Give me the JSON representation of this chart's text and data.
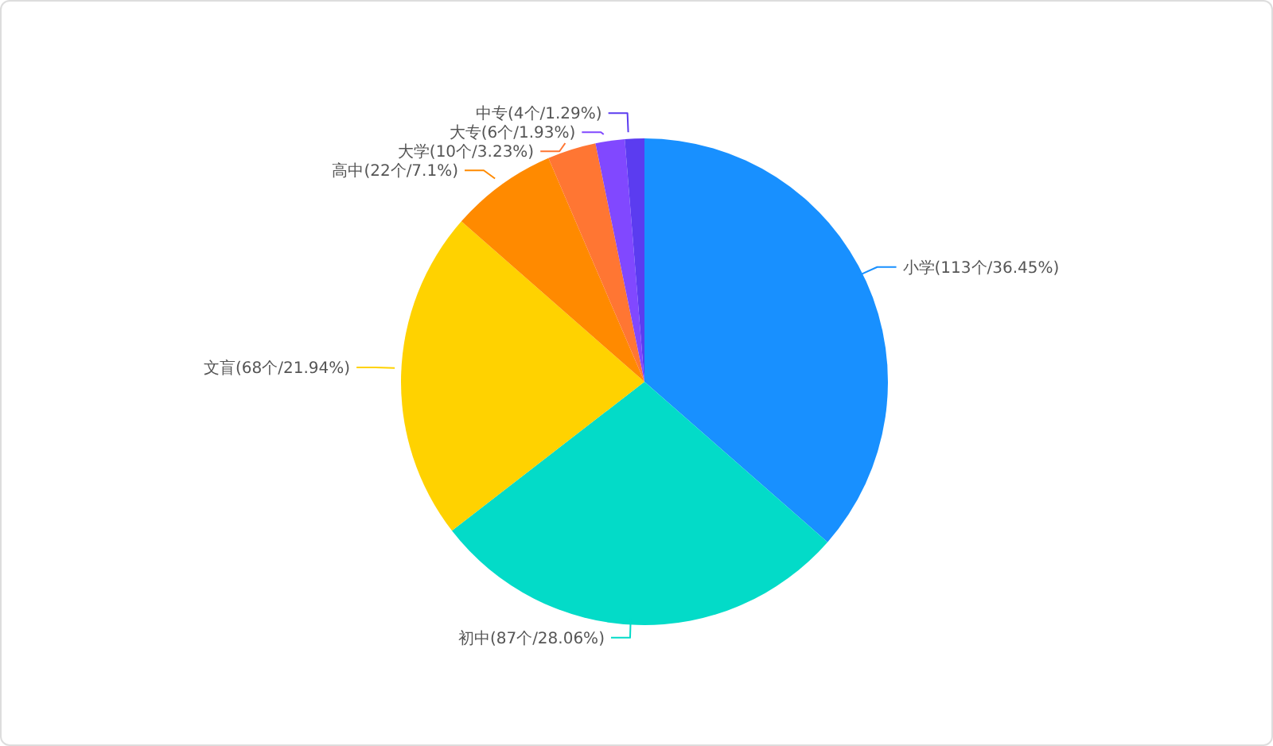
{
  "chart_data": {
    "type": "pie",
    "categories": [
      "小学",
      "初中",
      "文盲",
      "高中",
      "大学",
      "大专",
      "中专"
    ],
    "values": [
      113,
      87,
      68,
      22,
      10,
      6,
      4
    ],
    "colors": [
      "#1890ff",
      "#03dbc8",
      "#ffd200",
      "#ff8a00",
      "#ff7633",
      "#8148ff",
      "#5b3cf0"
    ],
    "value_labels": [
      "(113个/36.45%)",
      "(87个/28.06%)",
      "(68个/21.94%)",
      "(22个/7.1%)",
      "(10个/3.23%)",
      "(6个/1.93%)",
      "(4个/1.29%)"
    ],
    "legend": false
  }
}
